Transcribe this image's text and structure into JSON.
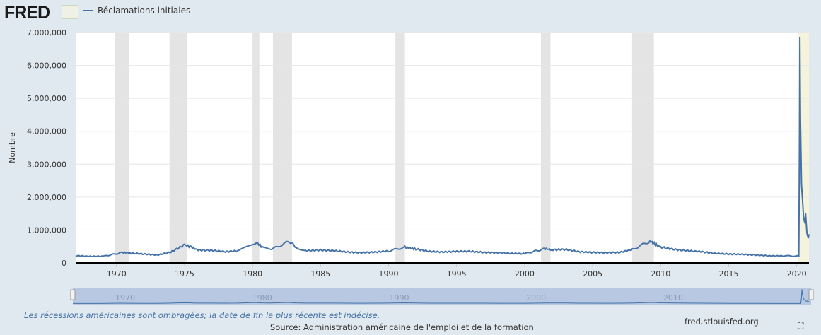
{
  "header": {
    "logo": "FRED",
    "legend_label": "Réclamations initiales"
  },
  "footer": {
    "recession_note": "Les récessions américaines sont ombragées; la date de fin la plus récente est indécise.",
    "source": "Source: Administration américaine de l'emploi et de la formation",
    "site": "fred.stlouisfed.org"
  },
  "navigator": {
    "labels": [
      "1970",
      "1980",
      "1990",
      "2000",
      "2010"
    ]
  },
  "colors": {
    "series": "#4572a7",
    "recession": "#e4e4e4",
    "current_recession": "#f5f3dc"
  },
  "chart_data": {
    "type": "line",
    "title": "Réclamations initiales",
    "xlabel": "",
    "ylabel": "Nombre",
    "xlim": [
      1967,
      2020.9
    ],
    "ylim": [
      0,
      7000000
    ],
    "xticks": [
      1970,
      1975,
      1980,
      1985,
      1990,
      1995,
      2000,
      2005,
      2010,
      2015,
      2020
    ],
    "yticks": [
      0,
      1000000,
      2000000,
      3000000,
      4000000,
      5000000,
      6000000,
      7000000
    ],
    "ytick_labels": [
      "0",
      "1,000,000",
      "2,000,000",
      "3,000,000",
      "4,000,000",
      "5,000,000",
      "6,000,000",
      "7,000,000"
    ],
    "grid": true,
    "recessions": [
      [
        1969.9,
        1970.9
      ],
      [
        1973.9,
        1975.2
      ],
      [
        1980.0,
        1980.5
      ],
      [
        1981.5,
        1982.9
      ],
      [
        1990.5,
        1991.2
      ],
      [
        2001.2,
        2001.9
      ],
      [
        2007.9,
        2009.5
      ]
    ],
    "current_recession": [
      2020.1,
      2020.9
    ],
    "series": [
      {
        "name": "Réclamations initiales",
        "x": [
          1967,
          1968,
          1969,
          1970.5,
          1971,
          1972,
          1973,
          1974,
          1975,
          1975.5,
          1976,
          1977,
          1978,
          1979,
          1980.3,
          1980.8,
          1981.5,
          1982.7,
          1983.3,
          1984,
          1985,
          1986,
          1987,
          1988,
          1989,
          1990,
          1991.2,
          1992,
          1993,
          1994,
          1995,
          1996,
          1997,
          1998,
          1999,
          2000,
          2001.5,
          2002,
          2003,
          2004,
          2005,
          2006,
          2007,
          2008,
          2009.2,
          2010,
          2011,
          2012,
          2013,
          2014,
          2015,
          2016,
          2017,
          2018,
          2019,
          2020.15,
          2020.2,
          2020.23,
          2020.27,
          2020.35,
          2020.5,
          2020.6,
          2020.65,
          2020.75,
          2020.85,
          2020.9
        ],
        "y": [
          220000,
          200000,
          200000,
          320000,
          300000,
          270000,
          240000,
          330000,
          550000,
          480000,
          390000,
          380000,
          340000,
          370000,
          620000,
          450000,
          430000,
          650000,
          450000,
          370000,
          390000,
          370000,
          330000,
          310000,
          330000,
          360000,
          480000,
          420000,
          350000,
          330000,
          350000,
          350000,
          320000,
          310000,
          290000,
          280000,
          430000,
          400000,
          410000,
          340000,
          320000,
          310000,
          320000,
          420000,
          660000,
          480000,
          410000,
          370000,
          340000,
          290000,
          270000,
          260000,
          240000,
          215000,
          215000,
          210000,
          3300000,
          6870000,
          4400000,
          2400000,
          1400000,
          1200000,
          1500000,
          900000,
          750000,
          870000
        ]
      }
    ]
  }
}
